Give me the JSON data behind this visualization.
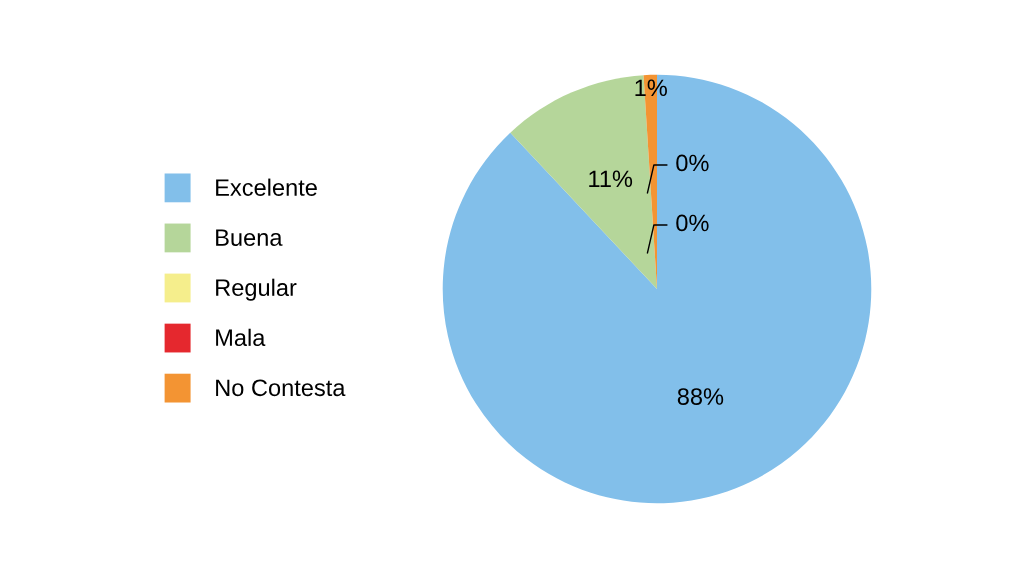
{
  "chart_data": {
    "type": "pie",
    "categories": [
      "Excelente",
      "Buena",
      "Regular",
      "Mala",
      "No Contesta"
    ],
    "values": [
      88,
      11,
      0,
      0,
      1
    ],
    "colors": [
      "#82bfea",
      "#b5d69a",
      "#f5ee8c",
      "#e5282e",
      "#f39433"
    ],
    "value_labels": [
      "88%",
      "11%",
      "0%",
      "0%",
      "1%"
    ],
    "legend": "left"
  }
}
